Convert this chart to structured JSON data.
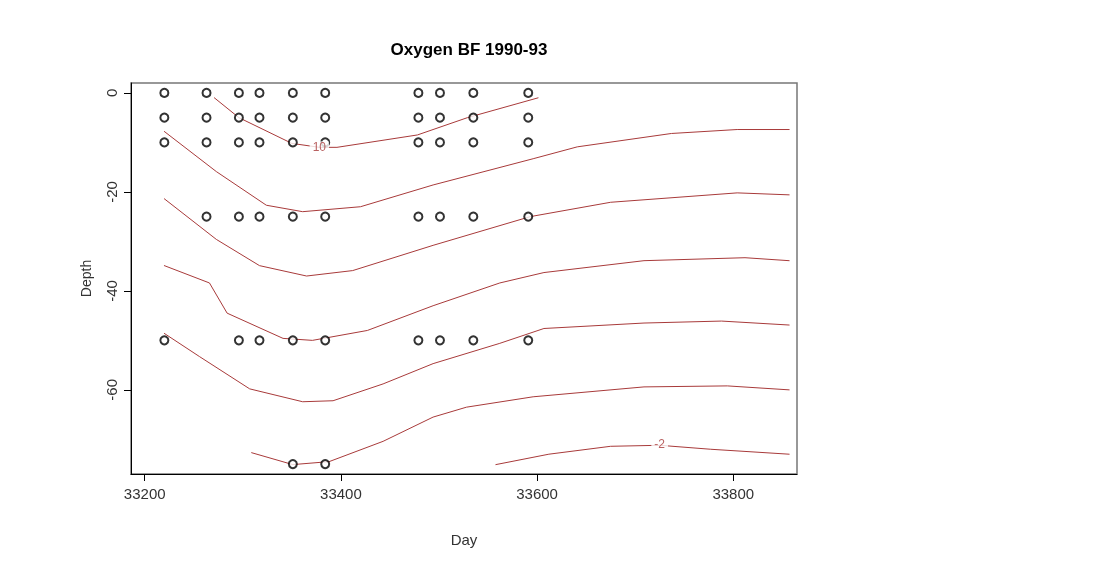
{
  "chart_data": {
    "type": "scatter",
    "title": "Oxygen BF 1990-93",
    "xlabel": "Day",
    "ylabel": "Depth",
    "xlim": [
      33186,
      33865
    ],
    "xticks": [
      33200,
      33400,
      33600,
      33800
    ],
    "ylim": [
      -77,
      2
    ],
    "yticks": [
      -60,
      -40,
      -20,
      0
    ],
    "annotations": [
      {
        "text": "10",
        "x": 33378,
        "y": -11
      },
      {
        "text": "-2",
        "x": 33725,
        "y": -71
      }
    ],
    "series": [
      {
        "marker": "circle",
        "color": "#000000",
        "x": [
          33220,
          33263,
          33296,
          33317,
          33351,
          33384,
          33479,
          33501,
          33535,
          33591,
          33220,
          33263,
          33296,
          33317,
          33351,
          33384,
          33479,
          33501,
          33535,
          33591,
          33220,
          33263,
          33296,
          33317,
          33351,
          33384,
          33479,
          33501,
          33535,
          33591,
          33263,
          33296,
          33317,
          33351,
          33384,
          33479,
          33501,
          33535,
          33591,
          33220,
          33296,
          33317,
          33351,
          33384,
          33479,
          33501,
          33535,
          33591,
          33351,
          33384
        ],
        "values": [
          0,
          0,
          0,
          0,
          0,
          0,
          0,
          0,
          0,
          0,
          -5,
          -5,
          -5,
          -5,
          -5,
          -5,
          -5,
          -5,
          -5,
          -5,
          -10,
          -10,
          -10,
          -10,
          -10,
          -10,
          -10,
          -10,
          -10,
          -10,
          -25,
          -25,
          -25,
          -25,
          -25,
          -25,
          -25,
          -25,
          -25,
          -50,
          -50,
          -50,
          -50,
          -50,
          -50,
          -50,
          -50,
          -50,
          -75,
          -75
        ]
      },
      {
        "type": "line",
        "color": "#a83a3a",
        "x": [
          33271,
          33296,
          33350,
          33378,
          33396,
          33478,
          33529,
          33601
        ],
        "values": [
          -1,
          -5,
          -10.2,
          -11,
          -11,
          -8.5,
          -5,
          -1
        ]
      },
      {
        "type": "line",
        "color": "#a83a3a",
        "x": [
          33220,
          33273,
          33324,
          33361,
          33420,
          33494,
          33596,
          33641,
          33737,
          33804,
          33857
        ],
        "values": [
          -7.8,
          -15.9,
          -22.7,
          -24,
          -23,
          -18.6,
          -13.3,
          -10.9,
          -8.2,
          -7.4,
          -7.4
        ]
      },
      {
        "type": "line",
        "color": "#a83a3a",
        "x": [
          33220,
          33273,
          33317,
          33365,
          33412,
          33494,
          33593,
          33675,
          33804,
          33857
        ],
        "values": [
          -21.4,
          -29.6,
          -34.9,
          -37,
          -35.9,
          -30.8,
          -25,
          -22.1,
          -20.2,
          -20.6
        ]
      },
      {
        "type": "line",
        "color": "#a83a3a",
        "x": [
          33220,
          33266,
          33284,
          33341,
          33371,
          33427,
          33494,
          33562,
          33607,
          33709,
          33812,
          33857
        ],
        "values": [
          -34.9,
          -38.4,
          -44.5,
          -49.6,
          -50,
          -48,
          -43,
          -38.4,
          -36.3,
          -33.9,
          -33.3,
          -33.9
        ]
      },
      {
        "type": "line",
        "color": "#a83a3a",
        "x": [
          33220,
          33256,
          33307,
          33361,
          33392,
          33443,
          33494,
          33562,
          33607,
          33709,
          33788,
          33857
        ],
        "values": [
          -48.6,
          -53.3,
          -59.8,
          -62.4,
          -62.2,
          -58.8,
          -54.7,
          -50.6,
          -47.6,
          -46.5,
          -46.1,
          -46.9
        ]
      },
      {
        "type": "line",
        "color": "#a83a3a",
        "x": [
          33309,
          33351,
          33388,
          33443,
          33494,
          33528,
          33596,
          33709,
          33794,
          33857
        ],
        "values": [
          -72.7,
          -75.1,
          -74.5,
          -70.4,
          -65.5,
          -63.5,
          -61.4,
          -59.4,
          -59.2,
          -60
        ]
      },
      {
        "type": "line",
        "color": "#a83a3a",
        "x": [
          33558,
          33612,
          33675,
          33725,
          33777,
          33857
        ],
        "values": [
          -75.1,
          -73,
          -71.4,
          -71.2,
          -72,
          -73
        ]
      }
    ]
  }
}
